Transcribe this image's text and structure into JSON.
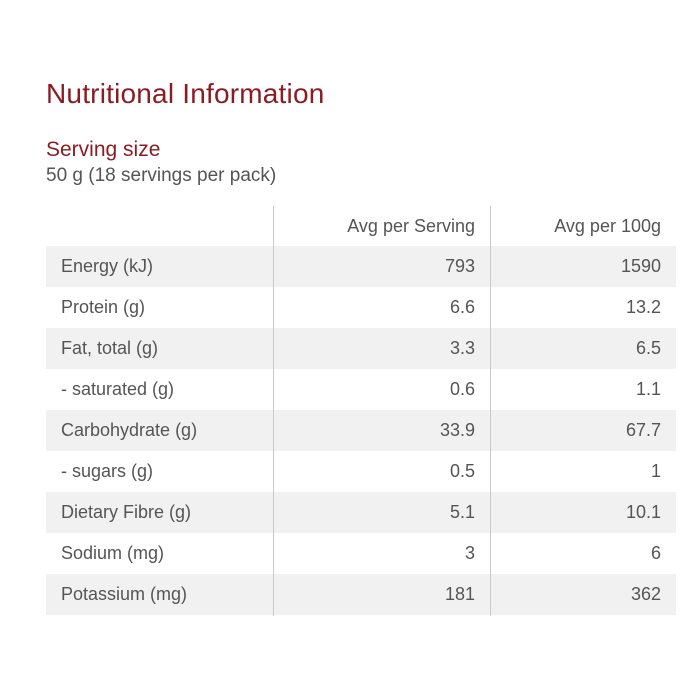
{
  "title": "Nutritional Information",
  "serving": {
    "label": "Serving size",
    "value": "50 g (18 servings per pack)"
  },
  "table": {
    "headers": [
      "",
      "Avg per Serving",
      "Avg per 100g"
    ],
    "rows": [
      {
        "nutrient": "Energy (kJ)",
        "per_serving": "793",
        "per_100g": "1590"
      },
      {
        "nutrient": "Protein (g)",
        "per_serving": "6.6",
        "per_100g": "13.2"
      },
      {
        "nutrient": "Fat, total (g)",
        "per_serving": "3.3",
        "per_100g": "6.5"
      },
      {
        "nutrient": "- saturated (g)",
        "per_serving": "0.6",
        "per_100g": "1.1"
      },
      {
        "nutrient": "Carbohydrate (g)",
        "per_serving": "33.9",
        "per_100g": "67.7"
      },
      {
        "nutrient": "- sugars (g)",
        "per_serving": "0.5",
        "per_100g": "1"
      },
      {
        "nutrient": "Dietary Fibre (g)",
        "per_serving": "5.1",
        "per_100g": "10.1"
      },
      {
        "nutrient": "Sodium (mg)",
        "per_serving": "3",
        "per_100g": "6"
      },
      {
        "nutrient": "Potassium (mg)",
        "per_serving": "181",
        "per_100g": "362"
      }
    ]
  },
  "colors": {
    "accent": "#8b1c24",
    "text": "#555555",
    "stripe": "#f1f1f1",
    "divider": "#c8c8c8"
  }
}
